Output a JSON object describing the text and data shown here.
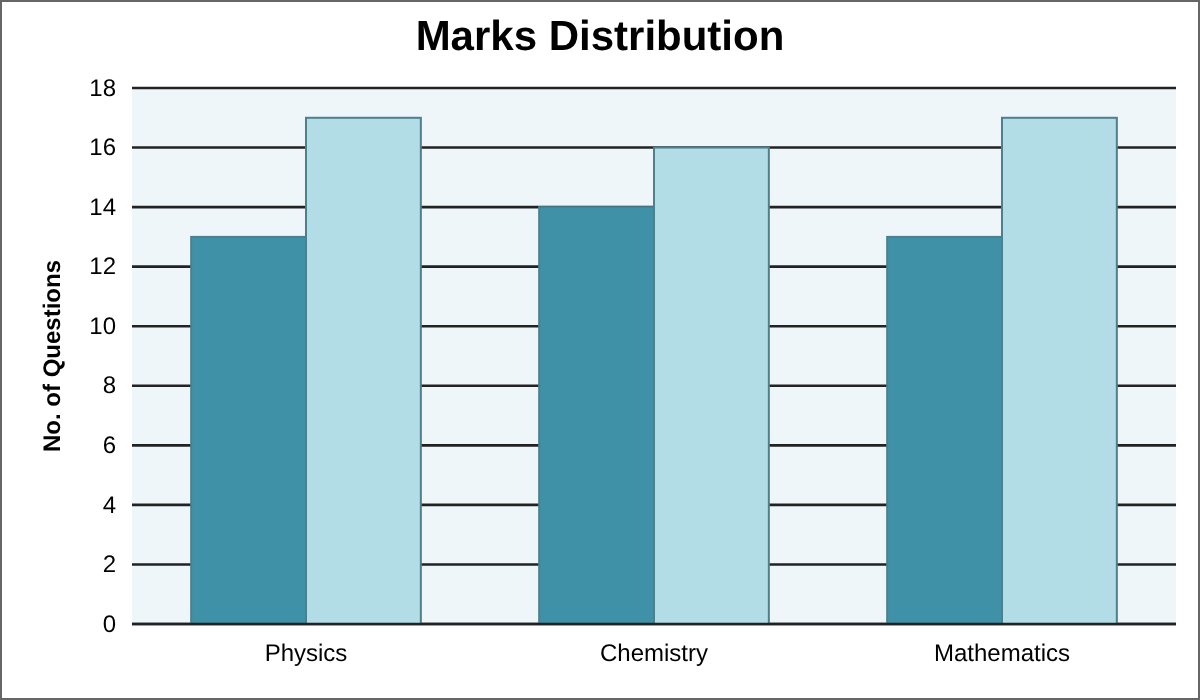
{
  "chart_data": {
    "type": "bar",
    "title": "Marks Distribution",
    "ylabel": "No. of Questions",
    "categories": [
      "Physics",
      "Chemistry",
      "Mathematics"
    ],
    "series": [
      {
        "color": "#3f91a8",
        "values": [
          13,
          14,
          13
        ]
      },
      {
        "color": "#b2dce6",
        "values": [
          17,
          16,
          17
        ]
      }
    ],
    "ylim": [
      0,
      18
    ],
    "yticks": [
      0,
      2,
      4,
      6,
      8,
      10,
      12,
      14,
      16,
      18
    ],
    "grid": "y"
  }
}
